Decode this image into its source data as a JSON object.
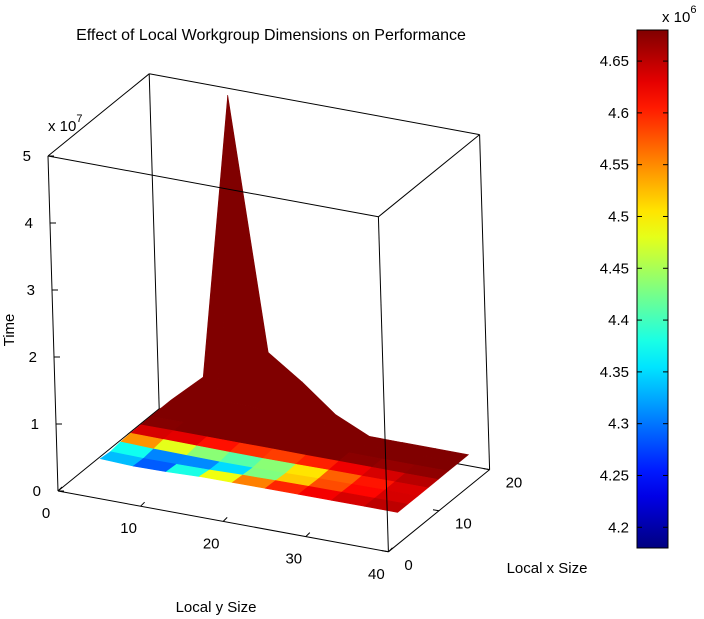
{
  "chart_data": {
    "type": "surface",
    "title": "Effect of Local Workgroup Dimensions on Performance",
    "xlabel": "Local y Size",
    "ylabel": "Local x Size",
    "zlabel": "Time",
    "z_multiplier": "x 10",
    "z_multiplier_exp": "7",
    "x_ticks": [
      "0",
      "10",
      "20",
      "30",
      "40"
    ],
    "y_ticks": [
      "0",
      "10",
      "20"
    ],
    "z_ticks": [
      "0",
      "1",
      "2",
      "3",
      "4",
      "5"
    ],
    "xlim": [
      0,
      40
    ],
    "ylim": [
      0,
      20
    ],
    "zlim": [
      0,
      50000000
    ],
    "colorbar": {
      "multiplier": "x 10",
      "multiplier_exp": "6",
      "range": [
        4180000,
        4680000
      ],
      "ticks": [
        "4.2",
        "4.25",
        "4.3",
        "4.35",
        "4.4",
        "4.45",
        "4.5",
        "4.55",
        "4.6",
        "4.65"
      ],
      "tick_values": [
        4.2,
        4.25,
        4.3,
        4.35,
        4.4,
        4.45,
        4.5,
        4.55,
        4.6,
        4.65
      ]
    },
    "surface": {
      "y_size_values": [
        4,
        8,
        12,
        16,
        20,
        24,
        28,
        32,
        36,
        40
      ],
      "x_size_values": [
        2,
        4,
        6,
        8,
        10,
        12,
        14,
        16
      ],
      "time_rows": [
        [
          4500000,
          4320000,
          4560000,
          4620000,
          4650000,
          4680000,
          4680000,
          4680000
        ],
        [
          4300000,
          4220000,
          4400000,
          4600000,
          4680000,
          4700000,
          5500000,
          9000000
        ],
        [
          4380000,
          4250000,
          4360000,
          4560000,
          4680000,
          9000000,
          20000000,
          52000000
        ],
        [
          4560000,
          4330000,
          4300000,
          4520000,
          4680000,
          9000000,
          14000000,
          14500000
        ],
        [
          4600000,
          4450000,
          4320000,
          4500000,
          4680000,
          8500000,
          9500000,
          11000000
        ],
        [
          4620000,
          4550000,
          4400000,
          4520000,
          4650000,
          5500000,
          7000000,
          7000000
        ],
        [
          4630000,
          4600000,
          4520000,
          4580000,
          4660000,
          4700000,
          4700000,
          4700000
        ],
        [
          4640000,
          4620000,
          4580000,
          4600000,
          4660000,
          4680000,
          4680000,
          4680000
        ],
        [
          4650000,
          4640000,
          4620000,
          4630000,
          4660000,
          4680000,
          4680000,
          4680000
        ],
        [
          4660000,
          4650000,
          4640000,
          4650000,
          4670000,
          4680000,
          4680000,
          4680000
        ]
      ]
    }
  }
}
